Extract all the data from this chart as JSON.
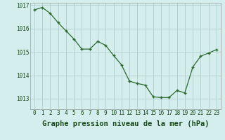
{
  "x": [
    0,
    1,
    2,
    3,
    4,
    5,
    6,
    7,
    8,
    9,
    10,
    11,
    12,
    13,
    14,
    15,
    16,
    17,
    18,
    19,
    20,
    21,
    22,
    23
  ],
  "y": [
    1016.8,
    1016.9,
    1016.65,
    1016.25,
    1015.9,
    1015.55,
    1015.12,
    1015.12,
    1015.45,
    1015.28,
    1014.85,
    1014.45,
    1013.75,
    1013.65,
    1013.58,
    1013.08,
    1013.05,
    1013.05,
    1013.35,
    1013.25,
    1014.35,
    1014.82,
    1014.95,
    1015.1
  ],
  "line_color": "#2d6a2d",
  "marker_color": "#2d6a2d",
  "bg_color": "#d4eeee",
  "grid_color": "#b0cccc",
  "xlabel": "Graphe pression niveau de la mer (hPa)",
  "xlabel_color": "#1a4a1a",
  "ylim": [
    1012.55,
    1017.1
  ],
  "yticks": [
    1013,
    1014,
    1015,
    1016,
    1017
  ],
  "xticks": [
    0,
    1,
    2,
    3,
    4,
    5,
    6,
    7,
    8,
    9,
    10,
    11,
    12,
    13,
    14,
    15,
    16,
    17,
    18,
    19,
    20,
    21,
    22,
    23
  ],
  "tick_fontsize": 5.5,
  "xlabel_fontsize": 7.5
}
